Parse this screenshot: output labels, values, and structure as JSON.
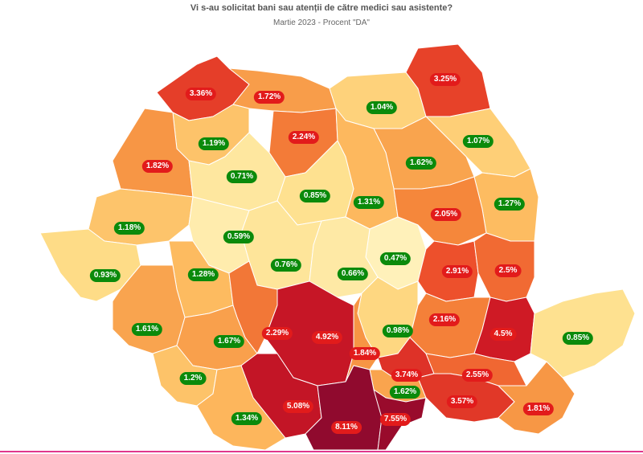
{
  "header": {
    "title": "Vi s-au solicitat bani sau atenții de către medici sau asistente?",
    "subtitle": "Martie 2023 - Procent \"DA\""
  },
  "colors": {
    "low": "#fff4c2",
    "high": "#8f0a2e",
    "label_green": "#0b8a0b",
    "label_red": "#e21b1b",
    "border": "#ffffff",
    "bottom_line": "#e0378d"
  },
  "regions": [
    {
      "text": "3.36%",
      "value": 3.36
    },
    {
      "text": "1.72%",
      "value": 1.72
    },
    {
      "text": "1.04%",
      "value": 1.04
    },
    {
      "text": "3.25%",
      "value": 3.25
    },
    {
      "text": "1.19%",
      "value": 1.19
    },
    {
      "text": "2.24%",
      "value": 2.24
    },
    {
      "text": "1.07%",
      "value": 1.07
    },
    {
      "text": "1.82%",
      "value": 1.82
    },
    {
      "text": "0.71%",
      "value": 0.71
    },
    {
      "text": "1.62%",
      "value": 1.62
    },
    {
      "text": "0.85%",
      "value": 0.85
    },
    {
      "text": "1.31%",
      "value": 1.31
    },
    {
      "text": "1.27%",
      "value": 1.27
    },
    {
      "text": "1.18%",
      "value": 1.18
    },
    {
      "text": "2.05%",
      "value": 2.05
    },
    {
      "text": "0.59%",
      "value": 0.59
    },
    {
      "text": "0.47%",
      "value": 0.47
    },
    {
      "text": "0.76%",
      "value": 0.76
    },
    {
      "text": "0.93%",
      "value": 0.93
    },
    {
      "text": "1.28%",
      "value": 1.28
    },
    {
      "text": "0.66%",
      "value": 0.66
    },
    {
      "text": "2.91%",
      "value": 2.91
    },
    {
      "text": "2.5%",
      "value": 2.5
    },
    {
      "text": "1.61%",
      "value": 1.61
    },
    {
      "text": "2.29%",
      "value": 2.29
    },
    {
      "text": "4.92%",
      "value": 4.92
    },
    {
      "text": "0.98%",
      "value": 0.98
    },
    {
      "text": "2.16%",
      "value": 2.16
    },
    {
      "text": "4.5%",
      "value": 4.5
    },
    {
      "text": "0.85%",
      "value": 0.85
    },
    {
      "text": "1.67%",
      "value": 1.67
    },
    {
      "text": "1.84%",
      "value": 1.84
    },
    {
      "text": "3.74%",
      "value": 3.74
    },
    {
      "text": "2.55%",
      "value": 2.55
    },
    {
      "text": "1.2%",
      "value": 1.2
    },
    {
      "text": "1.62%",
      "value": 1.62
    },
    {
      "text": "5.08%",
      "value": 5.08
    },
    {
      "text": "3.57%",
      "value": 3.57
    },
    {
      "text": "1.81%",
      "value": 1.81
    },
    {
      "text": "1.34%",
      "value": 1.34
    },
    {
      "text": "8.11%",
      "value": 8.11
    },
    {
      "text": "7.55%",
      "value": 7.55
    }
  ]
}
